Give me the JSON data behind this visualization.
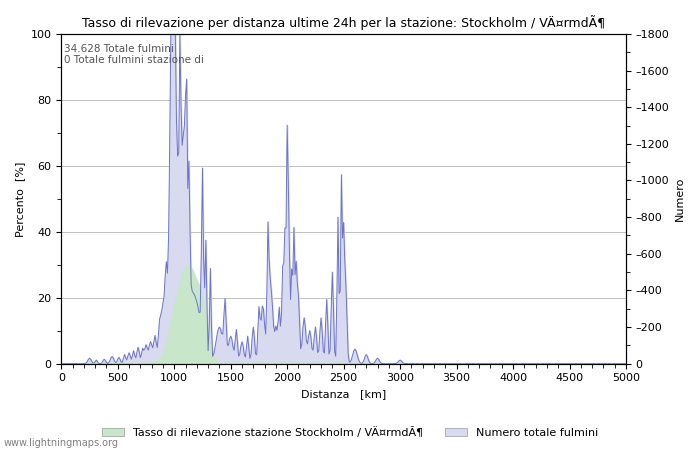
{
  "title": "Tasso di rilevazione per distanza ultime 24h per la stazione: Stockholm / VÄ¤rmdÃ¶",
  "xlabel": "Distanza   [km]",
  "ylabel_left": "Percento  [%]",
  "ylabel_right": "Numero",
  "annotation_line1": "34.628 Totale fulmini",
  "annotation_line2": "0 Totale fulmini stazione di",
  "xlim": [
    0,
    5000
  ],
  "ylim_left": [
    0,
    100
  ],
  "ylim_right": [
    0,
    1800
  ],
  "xticks": [
    0,
    500,
    1000,
    1500,
    2000,
    2500,
    3000,
    3500,
    4000,
    4500,
    5000
  ],
  "yticks_left": [
    0,
    20,
    40,
    60,
    80,
    100
  ],
  "yticks_right": [
    0,
    200,
    400,
    600,
    800,
    1000,
    1200,
    1400,
    1600,
    1800
  ],
  "legend_label_green": "Tasso di rilevazione stazione Stockholm / VÄ¤rmdÃ¶",
  "legend_label_blue": "Numero totale fulmini",
  "watermark": "www.lightningmaps.org",
  "fill_green_color": "#c8e6c9",
  "fill_blue_color": "#d8daf0",
  "line_blue_color": "#6e75c8",
  "background_color": "#ffffff",
  "grid_color": "#aaaaaa"
}
